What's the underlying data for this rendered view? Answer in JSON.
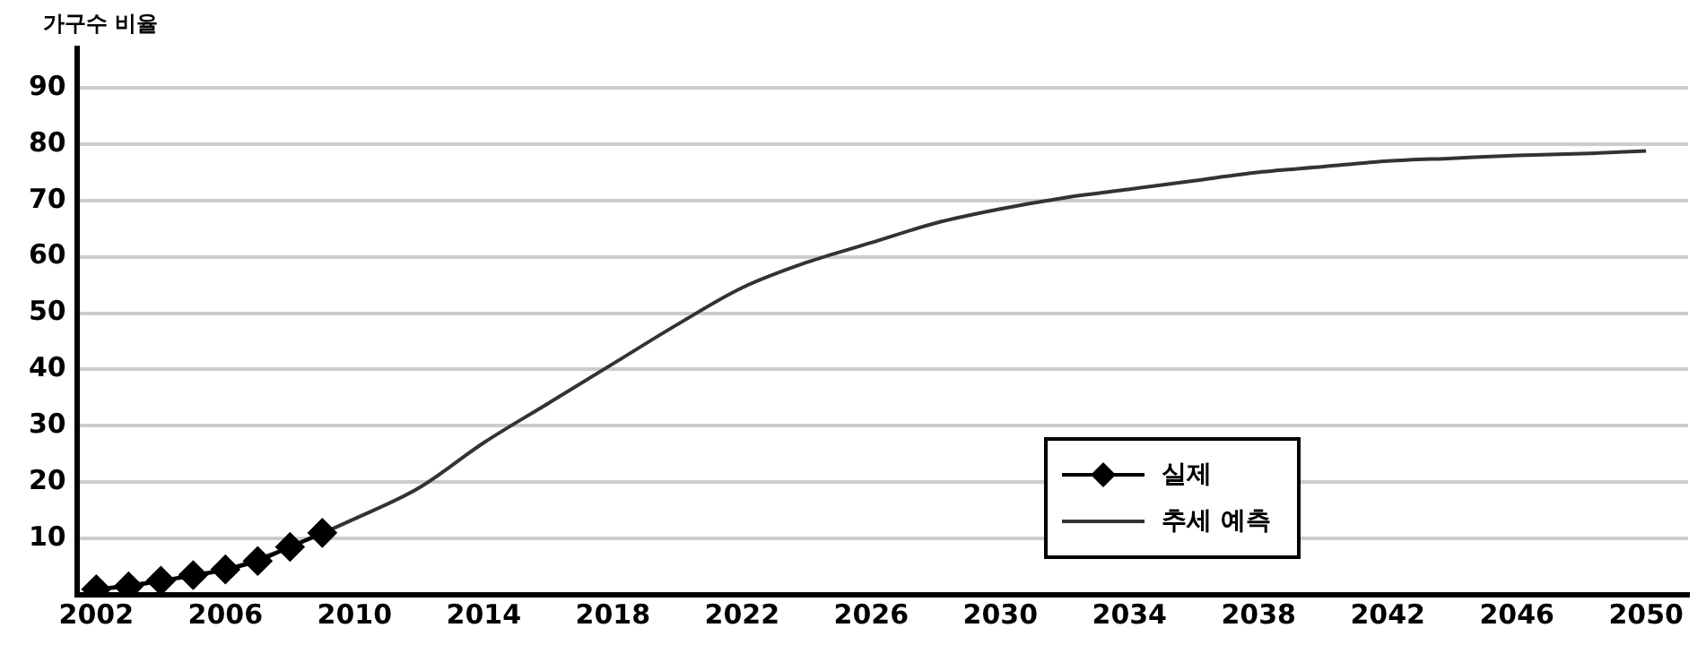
{
  "chart_data": {
    "type": "line",
    "ylabel": "가구수 비율",
    "xlim": [
      2001.4,
      2051.3
    ],
    "xticks": [
      2002,
      2006,
      2010,
      2014,
      2018,
      2022,
      2026,
      2030,
      2034,
      2038,
      2042,
      2046,
      2050
    ],
    "ylim": [
      0,
      97
    ],
    "yticks": [
      10,
      20,
      30,
      40,
      50,
      60,
      70,
      80,
      90
    ],
    "grid": "y",
    "legend": "bottom right",
    "series": [
      {
        "name": "실제",
        "color": "#000000",
        "marker": "diamond",
        "x": [
          2002,
          2003,
          2004,
          2005,
          2006,
          2007,
          2008,
          2009
        ],
        "values": [
          1,
          1.5,
          2.5,
          3.5,
          4.5,
          6,
          8.5,
          11
        ]
      },
      {
        "name": "추세 예측",
        "color": "#333333",
        "marker": "none",
        "x": [
          2002,
          2004,
          2006,
          2008,
          2010,
          2012,
          2014,
          2016,
          2018,
          2020,
          2022,
          2024,
          2026,
          2028,
          2030,
          2032,
          2034,
          2036,
          2038,
          2040,
          2042,
          2044,
          2046,
          2048,
          2050
        ],
        "values": [
          1,
          2.5,
          4.5,
          8.5,
          13.5,
          19,
          27,
          34,
          41,
          48,
          54.5,
          59,
          62.5,
          66,
          68.5,
          70.5,
          72,
          73.5,
          75,
          76,
          77,
          77.5,
          78,
          78.3,
          78.8
        ]
      }
    ]
  }
}
